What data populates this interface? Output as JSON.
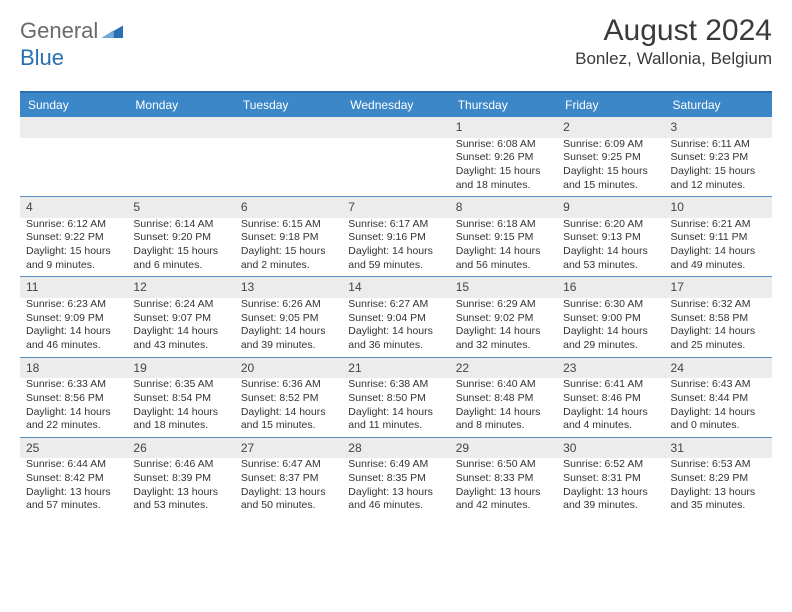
{
  "brand": {
    "word1": "General",
    "word2": "Blue"
  },
  "title": {
    "month": "August 2024",
    "location": "Bonlez, Wallonia, Belgium"
  },
  "style": {
    "header_bg": "#3b87c8",
    "accent": "#2a6fb0",
    "alt_row_bg": "#ececec",
    "divider": "#5b8fbf",
    "text": "#333333",
    "day_header_fontsize": 12,
    "daynum_fontsize": 12,
    "body_fontsize": 10.5,
    "month_fontsize": 30,
    "location_fontsize": 17
  },
  "day_headers": [
    "Sunday",
    "Monday",
    "Tuesday",
    "Wednesday",
    "Thursday",
    "Friday",
    "Saturday"
  ],
  "weeks": [
    [
      null,
      null,
      null,
      null,
      {
        "n": "1",
        "sr": "6:08 AM",
        "ss": "9:26 PM",
        "dl": "15 hours and 18 minutes."
      },
      {
        "n": "2",
        "sr": "6:09 AM",
        "ss": "9:25 PM",
        "dl": "15 hours and 15 minutes."
      },
      {
        "n": "3",
        "sr": "6:11 AM",
        "ss": "9:23 PM",
        "dl": "15 hours and 12 minutes."
      }
    ],
    [
      {
        "n": "4",
        "sr": "6:12 AM",
        "ss": "9:22 PM",
        "dl": "15 hours and 9 minutes."
      },
      {
        "n": "5",
        "sr": "6:14 AM",
        "ss": "9:20 PM",
        "dl": "15 hours and 6 minutes."
      },
      {
        "n": "6",
        "sr": "6:15 AM",
        "ss": "9:18 PM",
        "dl": "15 hours and 2 minutes."
      },
      {
        "n": "7",
        "sr": "6:17 AM",
        "ss": "9:16 PM",
        "dl": "14 hours and 59 minutes."
      },
      {
        "n": "8",
        "sr": "6:18 AM",
        "ss": "9:15 PM",
        "dl": "14 hours and 56 minutes."
      },
      {
        "n": "9",
        "sr": "6:20 AM",
        "ss": "9:13 PM",
        "dl": "14 hours and 53 minutes."
      },
      {
        "n": "10",
        "sr": "6:21 AM",
        "ss": "9:11 PM",
        "dl": "14 hours and 49 minutes."
      }
    ],
    [
      {
        "n": "11",
        "sr": "6:23 AM",
        "ss": "9:09 PM",
        "dl": "14 hours and 46 minutes."
      },
      {
        "n": "12",
        "sr": "6:24 AM",
        "ss": "9:07 PM",
        "dl": "14 hours and 43 minutes."
      },
      {
        "n": "13",
        "sr": "6:26 AM",
        "ss": "9:05 PM",
        "dl": "14 hours and 39 minutes."
      },
      {
        "n": "14",
        "sr": "6:27 AM",
        "ss": "9:04 PM",
        "dl": "14 hours and 36 minutes."
      },
      {
        "n": "15",
        "sr": "6:29 AM",
        "ss": "9:02 PM",
        "dl": "14 hours and 32 minutes."
      },
      {
        "n": "16",
        "sr": "6:30 AM",
        "ss": "9:00 PM",
        "dl": "14 hours and 29 minutes."
      },
      {
        "n": "17",
        "sr": "6:32 AM",
        "ss": "8:58 PM",
        "dl": "14 hours and 25 minutes."
      }
    ],
    [
      {
        "n": "18",
        "sr": "6:33 AM",
        "ss": "8:56 PM",
        "dl": "14 hours and 22 minutes."
      },
      {
        "n": "19",
        "sr": "6:35 AM",
        "ss": "8:54 PM",
        "dl": "14 hours and 18 minutes."
      },
      {
        "n": "20",
        "sr": "6:36 AM",
        "ss": "8:52 PM",
        "dl": "14 hours and 15 minutes."
      },
      {
        "n": "21",
        "sr": "6:38 AM",
        "ss": "8:50 PM",
        "dl": "14 hours and 11 minutes."
      },
      {
        "n": "22",
        "sr": "6:40 AM",
        "ss": "8:48 PM",
        "dl": "14 hours and 8 minutes."
      },
      {
        "n": "23",
        "sr": "6:41 AM",
        "ss": "8:46 PM",
        "dl": "14 hours and 4 minutes."
      },
      {
        "n": "24",
        "sr": "6:43 AM",
        "ss": "8:44 PM",
        "dl": "14 hours and 0 minutes."
      }
    ],
    [
      {
        "n": "25",
        "sr": "6:44 AM",
        "ss": "8:42 PM",
        "dl": "13 hours and 57 minutes."
      },
      {
        "n": "26",
        "sr": "6:46 AM",
        "ss": "8:39 PM",
        "dl": "13 hours and 53 minutes."
      },
      {
        "n": "27",
        "sr": "6:47 AM",
        "ss": "8:37 PM",
        "dl": "13 hours and 50 minutes."
      },
      {
        "n": "28",
        "sr": "6:49 AM",
        "ss": "8:35 PM",
        "dl": "13 hours and 46 minutes."
      },
      {
        "n": "29",
        "sr": "6:50 AM",
        "ss": "8:33 PM",
        "dl": "13 hours and 42 minutes."
      },
      {
        "n": "30",
        "sr": "6:52 AM",
        "ss": "8:31 PM",
        "dl": "13 hours and 39 minutes."
      },
      {
        "n": "31",
        "sr": "6:53 AM",
        "ss": "8:29 PM",
        "dl": "13 hours and 35 minutes."
      }
    ]
  ],
  "labels": {
    "sunrise": "Sunrise:",
    "sunset": "Sunset:",
    "daylight": "Daylight:"
  }
}
